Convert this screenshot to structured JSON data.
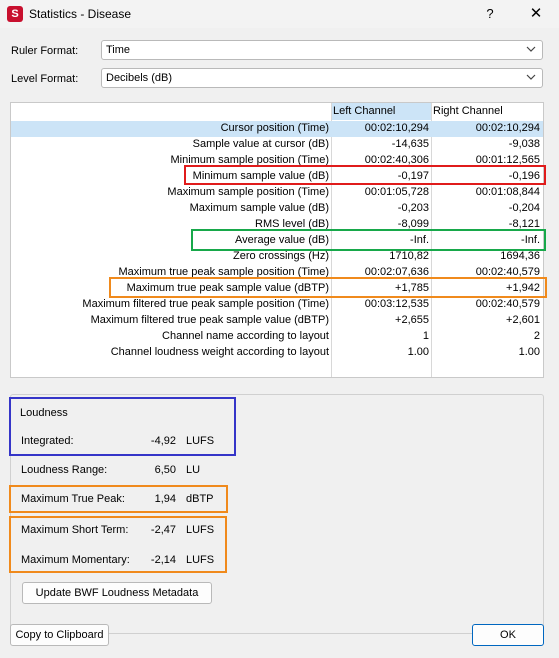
{
  "window": {
    "title": "Statistics - Disease",
    "icon_letter": "S",
    "help": "?",
    "close": "✕"
  },
  "ruler": {
    "label": "Ruler Format:",
    "value": "Time"
  },
  "level": {
    "label": "Level Format:",
    "value": "Decibels (dB)"
  },
  "table": {
    "headers": [
      "Left Channel",
      "Right Channel"
    ],
    "rows": [
      {
        "label": "Cursor position (Time)",
        "left": "00:02:10,294",
        "right": "00:02:10,294"
      },
      {
        "label": "Sample value at cursor (dB)",
        "left": "-14,635",
        "right": "-9,038"
      },
      {
        "label": "Minimum sample position (Time)",
        "left": "00:02:40,306",
        "right": "00:01:12,565"
      },
      {
        "label": "Minimum sample value (dB)",
        "left": "-0,197",
        "right": "-0,196"
      },
      {
        "label": "Maximum sample position (Time)",
        "left": "00:01:05,728",
        "right": "00:01:08,844"
      },
      {
        "label": "Maximum sample value (dB)",
        "left": "-0,203",
        "right": "-0,204"
      },
      {
        "label": "RMS level (dB)",
        "left": "-8,099",
        "right": "-8,121"
      },
      {
        "label": "Average value (dB)",
        "left": "-Inf.",
        "right": "-Inf."
      },
      {
        "label": "Zero crossings (Hz)",
        "left": "1710,82",
        "right": "1694,36"
      },
      {
        "label": "Maximum true peak sample position (Time)",
        "left": "00:02:07,636",
        "right": "00:02:40,579"
      },
      {
        "label": "Maximum true peak sample value (dBTP)",
        "left": "+1,785",
        "right": "+1,942"
      },
      {
        "label": "Maximum filtered true peak sample position (Time)",
        "left": "00:03:12,535",
        "right": "00:02:40,579"
      },
      {
        "label": "Maximum filtered true peak sample value (dBTP)",
        "left": "+2,655",
        "right": "+2,601"
      },
      {
        "label": "Channel name according to layout",
        "left": "1",
        "right": "2"
      },
      {
        "label": "Channel loudness weight according to layout",
        "left": "1.00",
        "right": "1.00"
      }
    ]
  },
  "loudness": {
    "title": "Loudness",
    "integrated": {
      "label": "Integrated:",
      "value": "-4,92",
      "unit": "LUFS"
    },
    "range": {
      "label": "Loudness Range:",
      "value": "6,50",
      "unit": "LU"
    },
    "true_peak": {
      "label": "Maximum True Peak:",
      "value": "1,94",
      "unit": "dBTP"
    },
    "short_term": {
      "label": "Maximum Short Term:",
      "value": "-2,47",
      "unit": "LUFS"
    },
    "momentary": {
      "label": "Maximum Momentary:",
      "value": "-2,14",
      "unit": "LUFS"
    },
    "update_button": "Update BWF Loudness Metadata"
  },
  "footer": {
    "copy_button": "Copy to Clipboard",
    "ok_button": "OK"
  },
  "colors": {
    "red": "#e01b1b",
    "green": "#17a84a",
    "orange": "#f08a1c",
    "blue": "#3535c8",
    "selection": "#cce4f7"
  }
}
